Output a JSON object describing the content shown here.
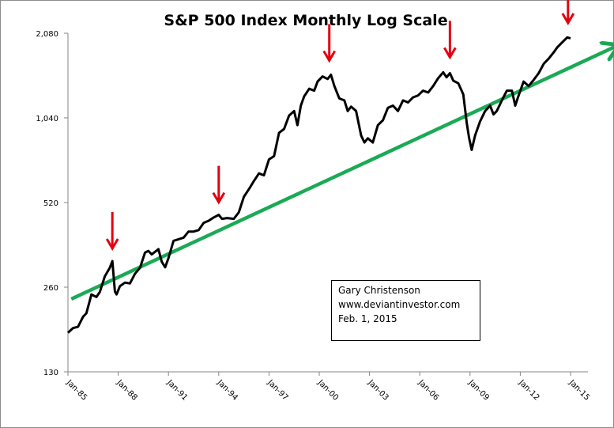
{
  "chart_data": {
    "type": "line",
    "title": "S&P 500 Index Monthly Log Scale",
    "xlabel": "",
    "ylabel": "",
    "yscale": "log2",
    "ylim": [
      130,
      2080
    ],
    "yticks": [
      130,
      260,
      520,
      1040,
      2080
    ],
    "ytick_labels": [
      "130",
      "260",
      "520",
      "1,040",
      "2,080"
    ],
    "xlim": [
      1985.0,
      2015.0
    ],
    "xticks": [
      1985,
      1988,
      1991,
      1994,
      1997,
      2000,
      2003,
      2006,
      2009,
      2012,
      2015
    ],
    "xtick_labels": [
      "Jan-85",
      "Jan-88",
      "Jan-91",
      "Jan-94",
      "Jan-97",
      "Jan-00",
      "Jan-03",
      "Jan-06",
      "Jan-09",
      "Jan-12",
      "Jan-15"
    ],
    "grid": false,
    "legend": "none",
    "series": [
      {
        "name": "S&P 500 Index",
        "color": "#000000",
        "x": [
          1985.0,
          1985.3,
          1985.6,
          1985.9,
          1986.1,
          1986.4,
          1986.7,
          1986.9,
          1987.2,
          1987.5,
          1987.65,
          1987.8,
          1987.9,
          1988.1,
          1988.4,
          1988.7,
          1989.0,
          1989.3,
          1989.6,
          1989.8,
          1990.0,
          1990.4,
          1990.6,
          1990.8,
          1991.0,
          1991.3,
          1991.6,
          1991.9,
          1992.2,
          1992.5,
          1992.8,
          1993.1,
          1993.4,
          1993.7,
          1994.0,
          1994.2,
          1994.5,
          1994.9,
          1995.2,
          1995.5,
          1995.8,
          1996.1,
          1996.4,
          1996.7,
          1997.0,
          1997.3,
          1997.6,
          1997.9,
          1998.2,
          1998.5,
          1998.7,
          1998.9,
          1999.1,
          1999.4,
          1999.7,
          1999.9,
          2000.2,
          2000.5,
          2000.7,
          2000.9,
          2001.2,
          2001.5,
          2001.7,
          2001.9,
          2002.2,
          2002.5,
          2002.7,
          2002.9,
          2003.2,
          2003.5,
          2003.8,
          2004.1,
          2004.4,
          2004.7,
          2005.0,
          2005.3,
          2005.6,
          2005.9,
          2006.2,
          2006.5,
          2006.8,
          2007.1,
          2007.4,
          2007.6,
          2007.8,
          2008.0,
          2008.3,
          2008.6,
          2008.8,
          2008.95,
          2009.1,
          2009.3,
          2009.6,
          2009.9,
          2010.2,
          2010.4,
          2010.6,
          2010.9,
          2011.2,
          2011.5,
          2011.7,
          2011.9,
          2012.2,
          2012.5,
          2012.8,
          2013.1,
          2013.4,
          2013.7,
          2014.0,
          2014.2,
          2014.5,
          2014.8,
          2015.0
        ],
        "y": [
          179,
          186,
          188,
          204,
          210,
          245,
          240,
          250,
          284,
          305,
          322,
          251,
          245,
          262,
          270,
          268,
          290,
          305,
          345,
          350,
          340,
          355,
          320,
          306,
          330,
          380,
          385,
          390,
          410,
          410,
          415,
          440,
          448,
          460,
          470,
          455,
          458,
          455,
          480,
          545,
          580,
          620,
          660,
          650,
          740,
          760,
          920,
          950,
          1060,
          1100,
          980,
          1150,
          1240,
          1320,
          1300,
          1400,
          1460,
          1430,
          1480,
          1350,
          1220,
          1200,
          1100,
          1140,
          1100,
          900,
          850,
          880,
          850,
          980,
          1020,
          1130,
          1150,
          1100,
          1200,
          1180,
          1230,
          1250,
          1300,
          1280,
          1350,
          1440,
          1510,
          1450,
          1500,
          1410,
          1380,
          1260,
          1000,
          880,
          800,
          900,
          1010,
          1100,
          1150,
          1070,
          1100,
          1200,
          1300,
          1300,
          1150,
          1250,
          1400,
          1350,
          1420,
          1500,
          1620,
          1690,
          1780,
          1850,
          1930,
          2010,
          1995
        ]
      }
    ],
    "trendline": {
      "name": "Trend line",
      "color": "#1aaa55",
      "start": {
        "x": 1985.2,
        "y": 236
      },
      "end": {
        "x": 2017.8,
        "y": 1880
      }
    },
    "annotations": [
      {
        "type": "down-arrow",
        "label": "peak",
        "x": 1987.65,
        "y": 322,
        "color": "#e3000f"
      },
      {
        "type": "down-arrow",
        "label": "peak",
        "x": 1994.0,
        "y": 470,
        "color": "#e3000f"
      },
      {
        "type": "down-arrow",
        "label": "peak",
        "x": 2000.6,
        "y": 1500,
        "color": "#e3000f"
      },
      {
        "type": "down-arrow",
        "label": "peak",
        "x": 2007.8,
        "y": 1540,
        "color": "#e3000f"
      },
      {
        "type": "down-arrow",
        "label": "peak",
        "x": 2014.85,
        "y": 2040,
        "color": "#e3000f"
      }
    ]
  },
  "note": {
    "author": "Gary Christenson",
    "website": "www.deviantinvestor.com",
    "date": "Feb. 1, 2015"
  }
}
